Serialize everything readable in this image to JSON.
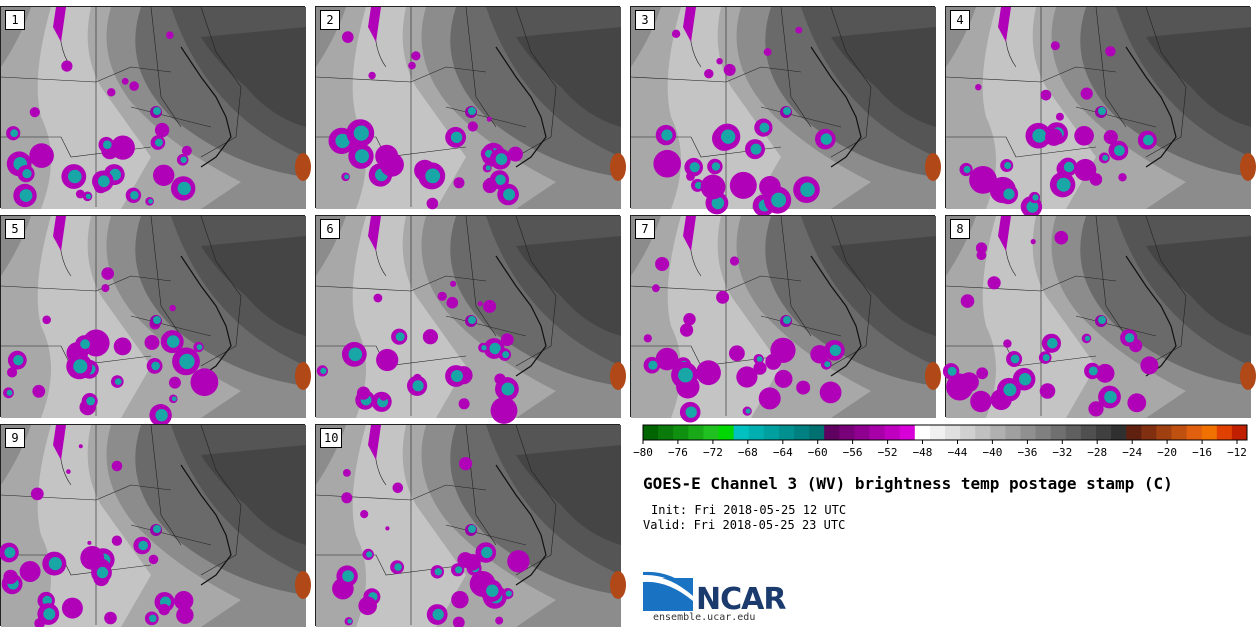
{
  "panels": [
    {
      "label": "1",
      "seed": 11
    },
    {
      "label": "2",
      "seed": 23
    },
    {
      "label": "3",
      "seed": 37
    },
    {
      "label": "4",
      "seed": 41
    },
    {
      "label": "5",
      "seed": 53
    },
    {
      "label": "6",
      "seed": 67
    },
    {
      "label": "7",
      "seed": 71
    },
    {
      "label": "8",
      "seed": 83
    },
    {
      "label": "9",
      "seed": 97
    },
    {
      "label": "10",
      "seed": 103
    }
  ],
  "colorbar": {
    "ticks": [
      "−80",
      "−76",
      "−72",
      "−68",
      "−64",
      "−60",
      "−56",
      "−52",
      "−48",
      "−44",
      "−40",
      "−36",
      "−32",
      "−28",
      "−24",
      "−20",
      "−16",
      "−12"
    ],
    "colors": [
      "#006400",
      "#0a7a0a",
      "#109010",
      "#18a818",
      "#20c020",
      "#00d600",
      "#00c0c0",
      "#00b0b0",
      "#00a0a0",
      "#009090",
      "#008080",
      "#007070",
      "#600060",
      "#780078",
      "#900090",
      "#a800a8",
      "#c000c0",
      "#d800d8",
      "#ffffff",
      "#f0f0f0",
      "#e0e0e0",
      "#d0d0d0",
      "#c0c0c0",
      "#b0b0b0",
      "#a0a0a0",
      "#909090",
      "#808080",
      "#707070",
      "#606060",
      "#505050",
      "#404040",
      "#303030",
      "#602010",
      "#803010",
      "#a04010",
      "#c05010",
      "#e06010",
      "#f07000",
      "#e04000",
      "#c02000"
    ]
  },
  "title": "GOES-E Channel 3 (WV) brightness temp postage stamp (C)",
  "init": "Init: Fri 2018-05-25 12 UTC",
  "valid": "Valid: Fri 2018-05-25 23 UTC",
  "logo": {
    "text": "NCAR",
    "site": "ensemble.ucar.edu"
  }
}
